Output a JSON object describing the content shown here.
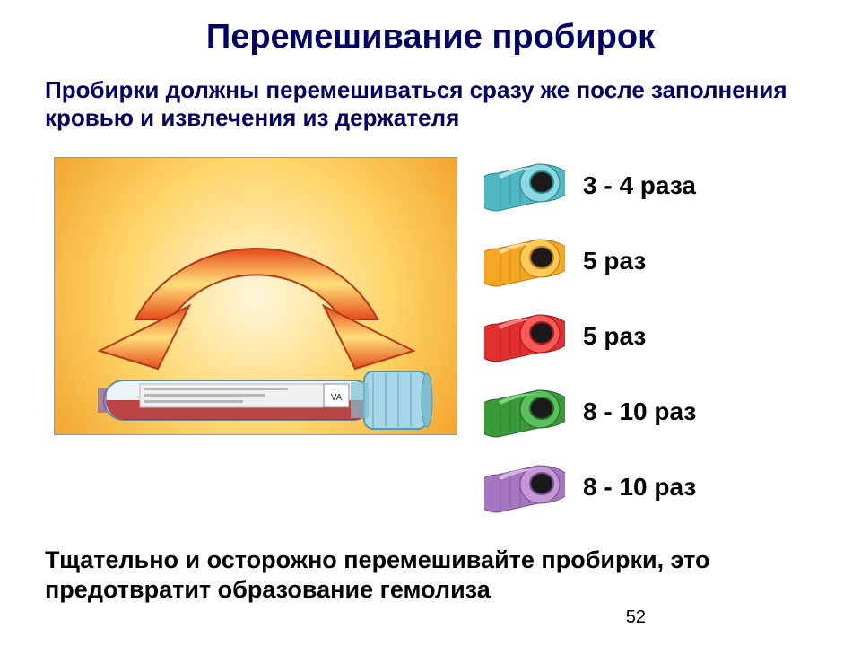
{
  "title": "Перемешивание пробирок",
  "subtitle": "Пробирки должны перемешиваться сразу же после заполнения кровью и извлечения из держателя",
  "footer": "Тщательно и осторожно перемешивайте пробирки, это предотвратит образование гемолиза",
  "page_number": "52",
  "caps": [
    {
      "label": "3 - 4 раза",
      "light": "#8fd9e0",
      "mid": "#4fb8c2",
      "dark": "#2a8a94",
      "top": "#b5e8ec"
    },
    {
      "label": "5  раз",
      "light": "#ffca5a",
      "mid": "#f5a623",
      "dark": "#c77a0c",
      "top": "#ffe19a"
    },
    {
      "label": "5  раз",
      "light": "#ff5a5a",
      "mid": "#e03030",
      "dark": "#a81818",
      "top": "#ff8a8a"
    },
    {
      "label": "8 - 10 раз",
      "light": "#5abf5a",
      "mid": "#3a9a3a",
      "dark": "#226b22",
      "top": "#86d986"
    },
    {
      "label": "8 - 10 раз",
      "light": "#c39ad6",
      "mid": "#a676c0",
      "dark": "#7a4f92",
      "top": "#dcc0e8"
    }
  ],
  "illustration": {
    "arrow_grad_inner": "#ffe07a",
    "arrow_grad_outer": "#e64a19",
    "arrow_stroke": "#b23c17",
    "tube_body_light": "#eaf3f7",
    "tube_body_mid": "#cfe0e8",
    "tube_cap_light": "#a7d7e6",
    "tube_cap_mid": "#7ebfd4",
    "tube_cap_dark": "#4f9bb3",
    "blood": "#b32424",
    "label_bg": "#f0f0f0"
  }
}
